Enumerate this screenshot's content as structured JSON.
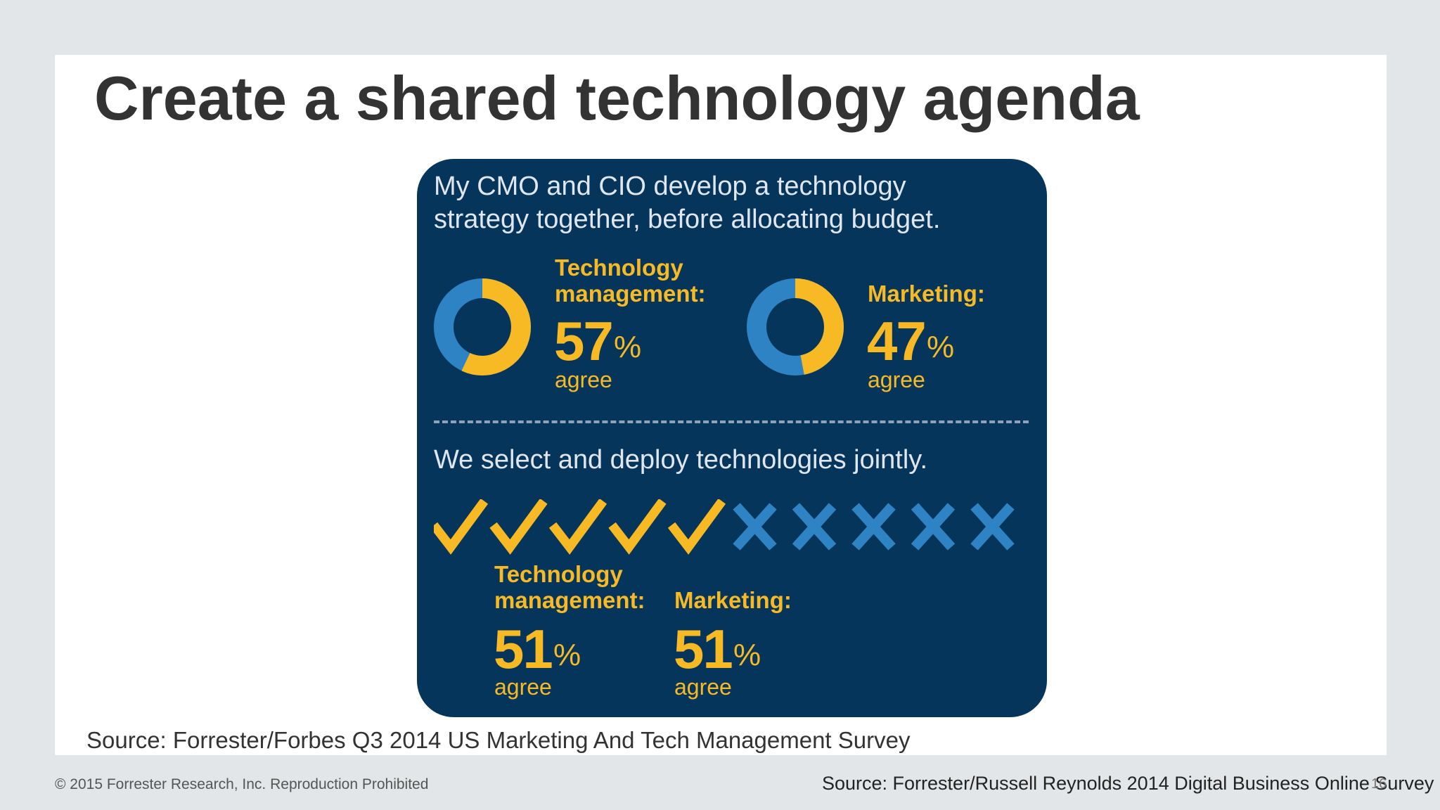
{
  "slide": {
    "title": "Create a shared technology agenda",
    "source": "Source: Forrester/Forbes Q3 2014 US Marketing And Tech Management Survey"
  },
  "infographic": {
    "question1": {
      "line1": "My CMO and CIO develop a technology",
      "line2": "strategy together, before allocating budget."
    },
    "stats1": [
      {
        "label_line1": "Technology",
        "label_line2": "management:",
        "value": "57",
        "pct": "%",
        "agree": "agree",
        "fraction": 0.57
      },
      {
        "label_line1": "",
        "label_line2": "Marketing:",
        "value": "47",
        "pct": "%",
        "agree": "agree",
        "fraction": 0.47
      }
    ],
    "question2": "We select and deploy technologies jointly.",
    "icon_row": {
      "checks": 5,
      "crosses": 5,
      "check_icon": "check-icon",
      "cross_icon": "cross-icon"
    },
    "stats2": [
      {
        "label_line1": "Technology",
        "label_line2": "management:",
        "value": "51",
        "pct": "%",
        "agree": "agree"
      },
      {
        "label_line1": "",
        "label_line2": "Marketing:",
        "value": "51",
        "pct": "%",
        "agree": "agree"
      }
    ],
    "colors": {
      "panel": "#06355b",
      "accent": "#f7b924",
      "blue": "#2d83c3",
      "text": "#dfe6ee"
    }
  },
  "footer": {
    "copyright": "© 2015 Forrester Research, Inc. Reproduction Prohibited",
    "source": "Source: Forrester/Russell Reynolds 2014 Digital Business Online Survey",
    "page_number": "16"
  }
}
